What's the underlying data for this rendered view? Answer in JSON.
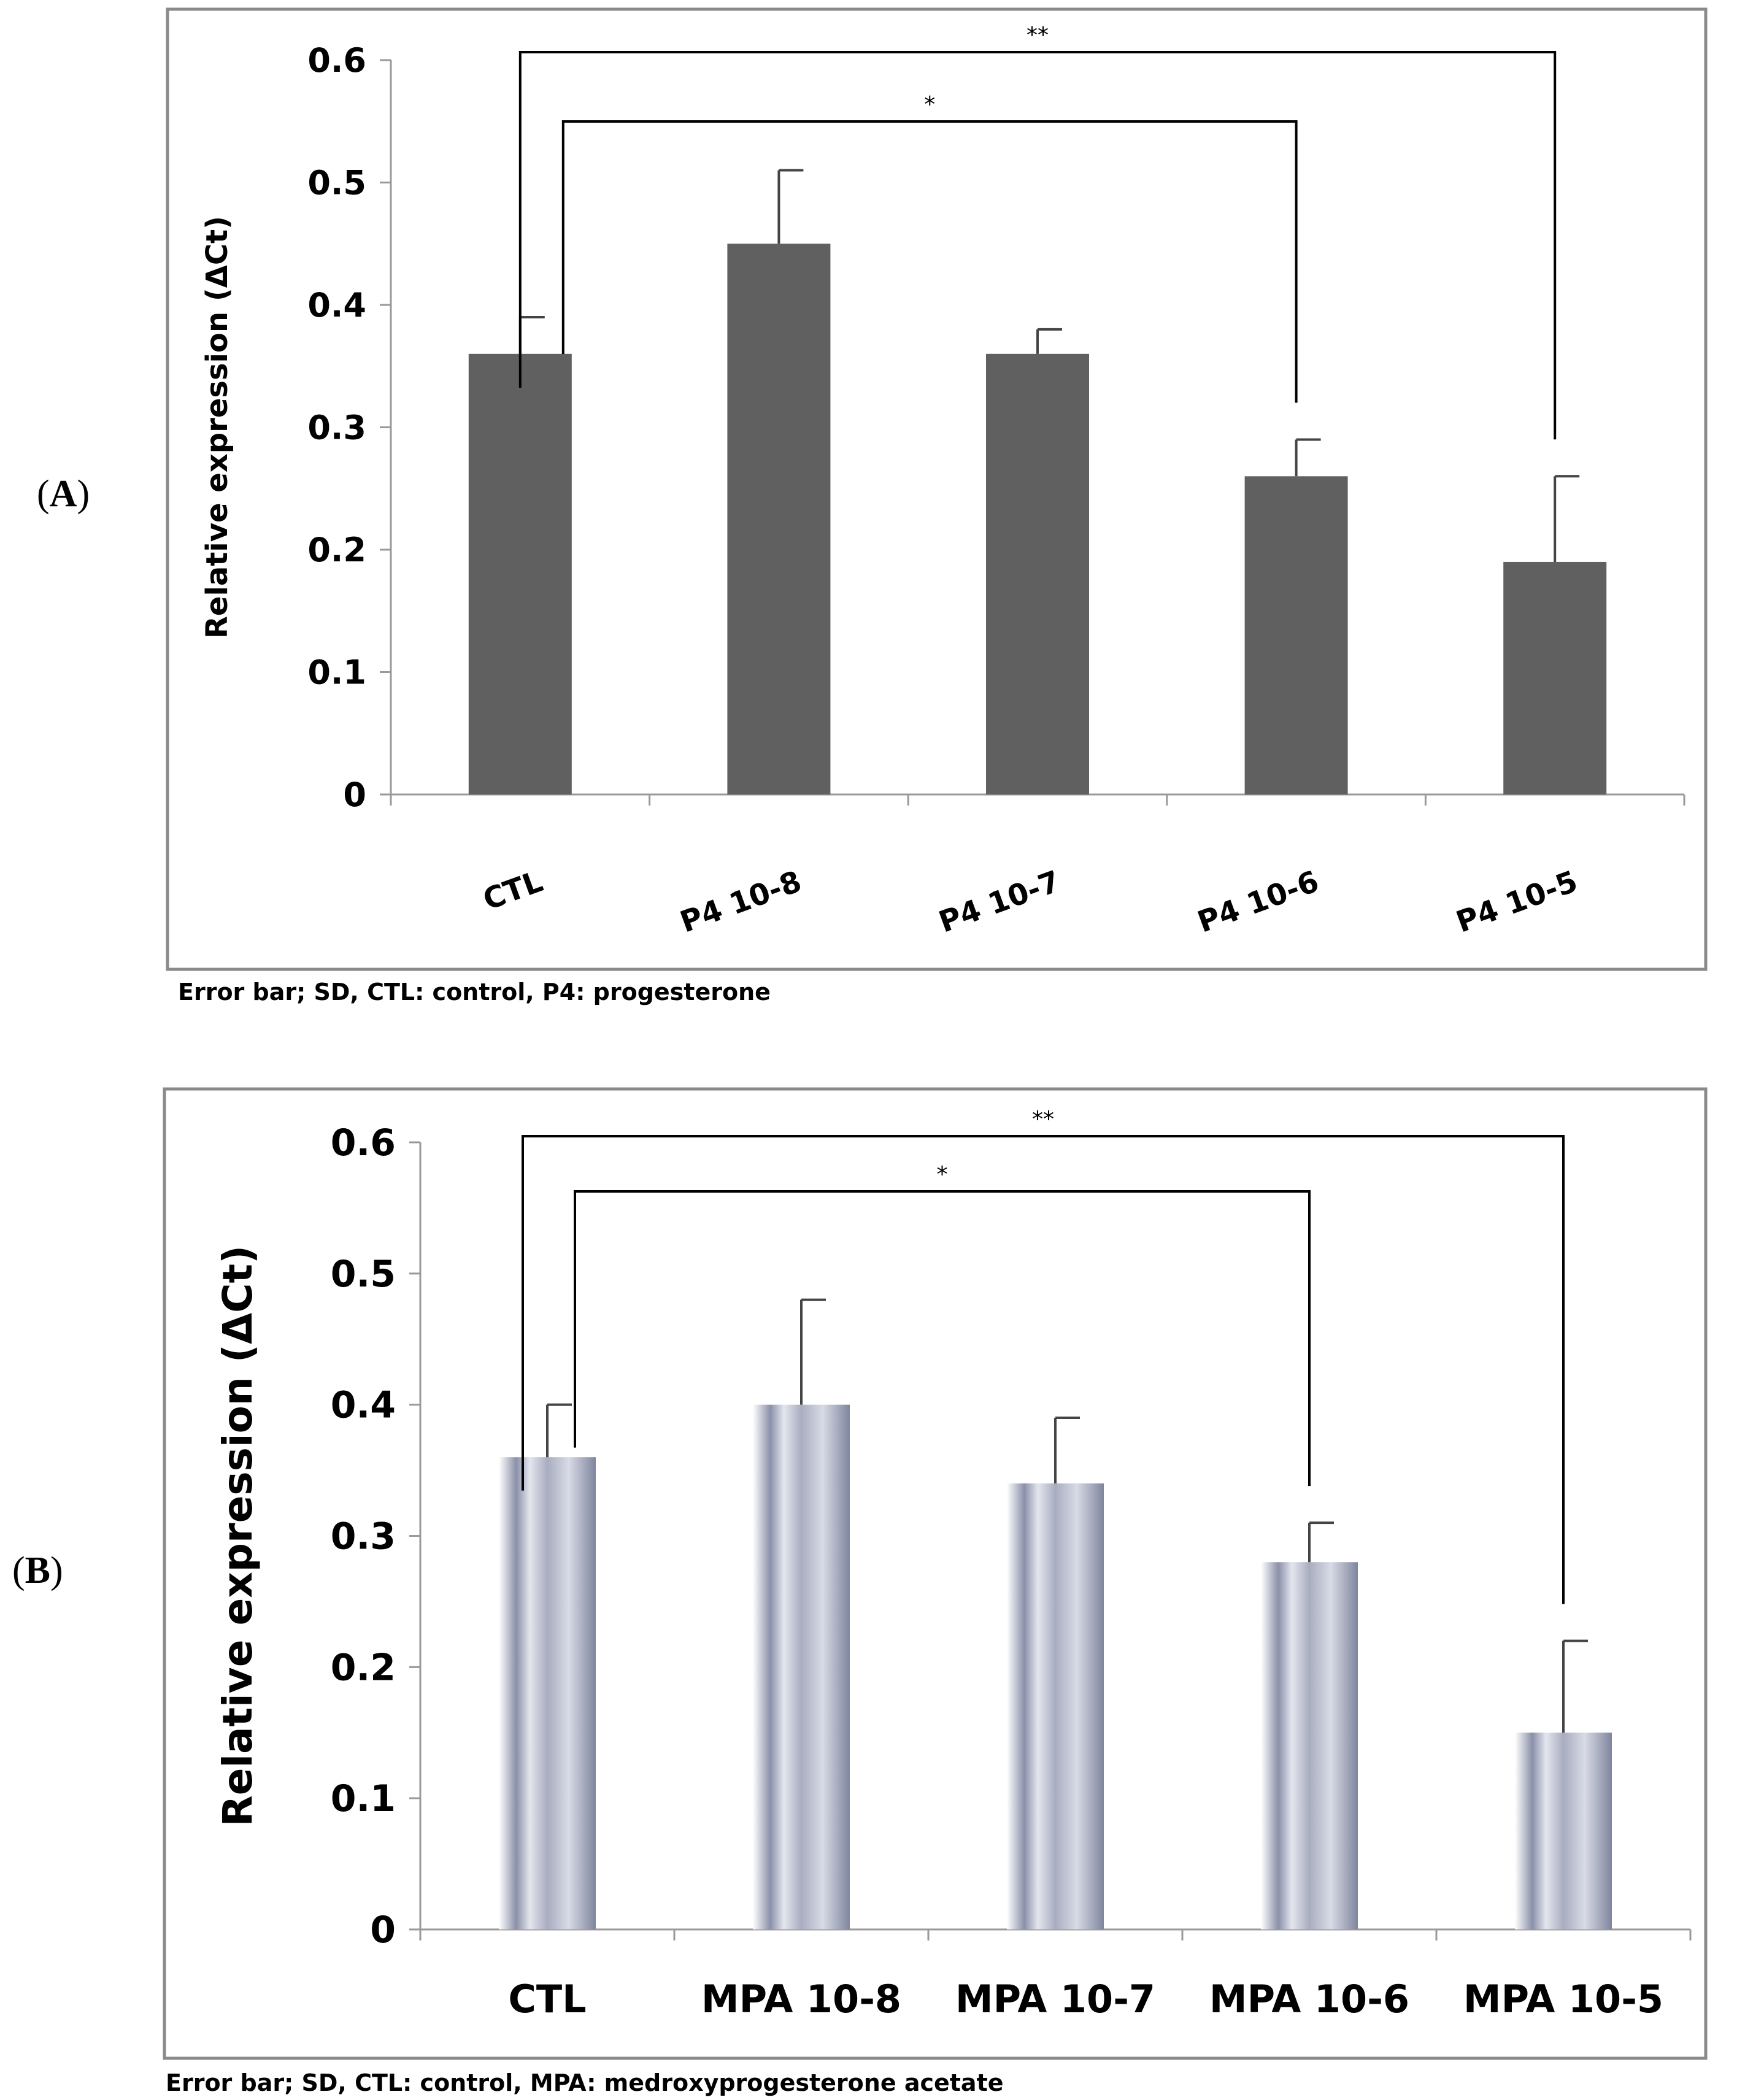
{
  "chart_data": [
    {
      "panel_label": "(A)",
      "type": "bar",
      "categories": [
        "CTL",
        "P4 10-8",
        "P4 10-7",
        "P4 10-6",
        "P4 10-5"
      ],
      "values": [
        0.36,
        0.45,
        0.36,
        0.26,
        0.19
      ],
      "error_upper": [
        0.39,
        0.51,
        0.38,
        0.29,
        0.26
      ],
      "ylabel": "Relative expression (ΔCt)",
      "ylim": [
        0,
        0.6
      ],
      "yticks": [
        "0",
        "0.1",
        "0.2",
        "0.3",
        "0.4",
        "0.5",
        "0.6"
      ],
      "bar_color": "#606060",
      "significance": [
        {
          "from": "CTL",
          "to": "P4 10-6",
          "label": "*"
        },
        {
          "from": "CTL",
          "to": "P4 10-5",
          "label": "**"
        }
      ],
      "caption": "Error bar; SD, CTL: control, P4: progesterone"
    },
    {
      "panel_label": "(B)",
      "type": "bar",
      "categories": [
        "CTL",
        "MPA 10-8",
        "MPA 10-7",
        "MPA 10-6",
        "MPA 10-5"
      ],
      "values": [
        0.36,
        0.4,
        0.34,
        0.28,
        0.15
      ],
      "error_upper": [
        0.4,
        0.48,
        0.39,
        0.31,
        0.22
      ],
      "ylabel": "Relative expression (ΔCt)",
      "ylim": [
        0,
        0.6
      ],
      "yticks": [
        "0",
        "0.1",
        "0.2",
        "0.3",
        "0.4",
        "0.5",
        "0.6"
      ],
      "bar_color": "#8a90a8",
      "significance": [
        {
          "from": "CTL",
          "to": "MPA 10-6",
          "label": "*"
        },
        {
          "from": "CTL",
          "to": "MPA 10-5",
          "label": "**"
        }
      ],
      "caption": "Error bar; SD, CTL: control, MPA: medroxyprogesterone acetate"
    }
  ]
}
